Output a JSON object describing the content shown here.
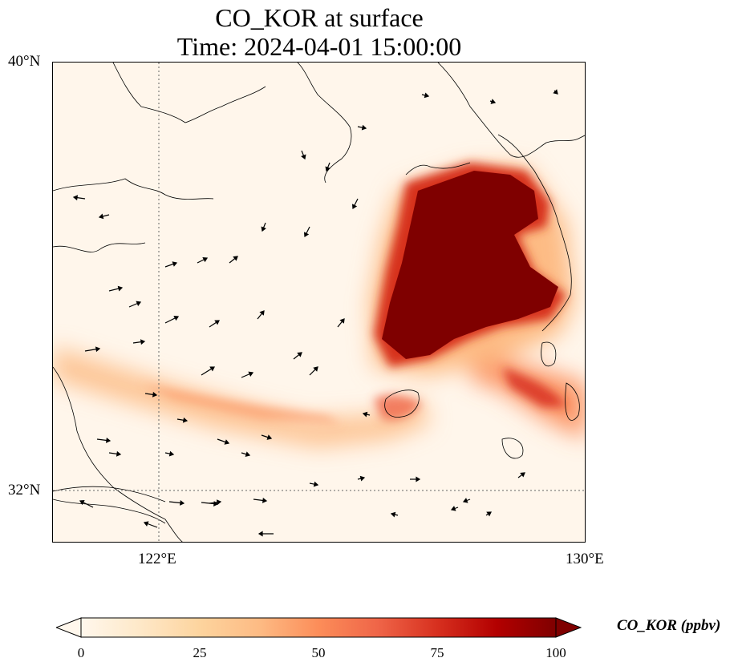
{
  "title": {
    "line1": "CO_KOR at surface",
    "line2": "Time: 2024-04-01 15:00:00"
  },
  "axes": {
    "lat_labels": [
      "40°N",
      "32°N"
    ],
    "lon_labels": [
      "122°E",
      "130°E"
    ]
  },
  "colorbar": {
    "label": "CO_KOR (ppbv)",
    "ticks": [
      "0",
      "25",
      "50",
      "75",
      "100"
    ],
    "range": [
      0,
      100
    ],
    "colormap": "OrRd",
    "colors": [
      "#fff7ec",
      "#fee8c8",
      "#fdd49e",
      "#fdbb84",
      "#fc8d59",
      "#ef6548",
      "#d7301f",
      "#b30000",
      "#7f0000"
    ]
  },
  "map_extent": {
    "lon": [
      120,
      130
    ],
    "lat": [
      31,
      40
    ]
  },
  "gridlines": {
    "lon": [
      122
    ],
    "lat": [
      32
    ],
    "style": "dotted"
  }
}
